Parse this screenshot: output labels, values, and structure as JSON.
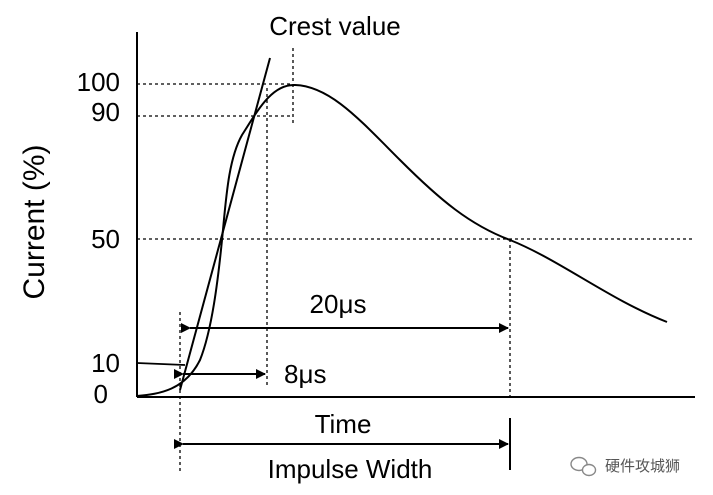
{
  "title": "Crest value",
  "y_axis_label": "Current (%)",
  "x_axis_label": "Time",
  "y_ticks": [
    "100",
    "90",
    "50",
    "10",
    "0"
  ],
  "front_time_label": "8μs",
  "tail_time_label": "20μs",
  "span_label": "Impulse Width",
  "watermark": "硬件攻城狮",
  "colors": {
    "line": "#000000",
    "background": "#ffffff"
  }
}
